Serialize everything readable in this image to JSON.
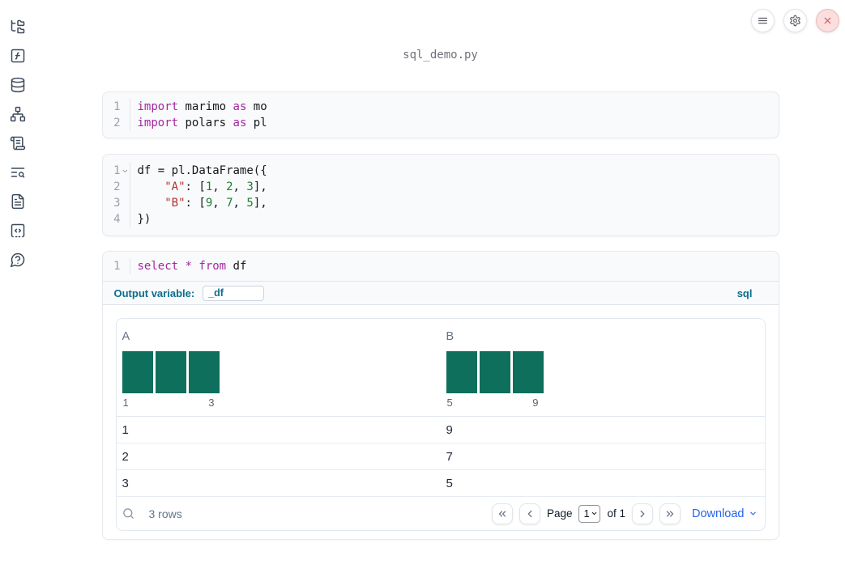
{
  "colors": {
    "keyword": "#a626a4",
    "string": "#b5312c",
    "number": "#1f7d32",
    "code_text": "#18181b",
    "bar": "#0e6f5c",
    "sql_accent": "#0c6d8c",
    "link_blue": "#2563eb"
  },
  "header": {
    "filename": "sql_demo.py"
  },
  "sidebar": {
    "items": [
      {
        "name": "file-explorer",
        "icon": "folder-tree-icon"
      },
      {
        "name": "variables",
        "icon": "function-square-icon"
      },
      {
        "name": "data-sources",
        "icon": "database-icon"
      },
      {
        "name": "dependency-graph",
        "icon": "network-icon"
      },
      {
        "name": "logs",
        "icon": "scroll-text-icon"
      },
      {
        "name": "outline",
        "icon": "text-search-icon"
      },
      {
        "name": "documentation",
        "icon": "file-text-icon"
      },
      {
        "name": "snippets",
        "icon": "code-square-icon"
      },
      {
        "name": "help",
        "icon": "message-question-icon"
      }
    ]
  },
  "topbar": {
    "buttons": [
      {
        "name": "notebook-menu",
        "icon": "menu-icon",
        "style": "default"
      },
      {
        "name": "settings",
        "icon": "gear-icon",
        "style": "default"
      },
      {
        "name": "shutdown",
        "icon": "close-icon",
        "style": "danger"
      }
    ]
  },
  "cells": [
    {
      "type": "python",
      "lines": [
        {
          "n": "1",
          "tokens": [
            [
              "kw",
              "import"
            ],
            [
              "plain",
              " marimo "
            ],
            [
              "kw",
              "as"
            ],
            [
              "plain",
              " mo"
            ]
          ]
        },
        {
          "n": "2",
          "tokens": [
            [
              "kw",
              "import"
            ],
            [
              "plain",
              " polars "
            ],
            [
              "kw",
              "as"
            ],
            [
              "plain",
              " pl"
            ]
          ]
        }
      ]
    },
    {
      "type": "python",
      "lines": [
        {
          "n": "1",
          "fold": true,
          "tokens": [
            [
              "plain",
              "df = pl.DataFrame({"
            ]
          ]
        },
        {
          "n": "2",
          "tokens": [
            [
              "plain",
              "    "
            ],
            [
              "str",
              "\"A\""
            ],
            [
              "plain",
              ": ["
            ],
            [
              "num",
              "1"
            ],
            [
              "plain",
              ", "
            ],
            [
              "num",
              "2"
            ],
            [
              "plain",
              ", "
            ],
            [
              "num",
              "3"
            ],
            [
              "plain",
              "],"
            ]
          ]
        },
        {
          "n": "3",
          "tokens": [
            [
              "plain",
              "    "
            ],
            [
              "str",
              "\"B\""
            ],
            [
              "plain",
              ": ["
            ],
            [
              "num",
              "9"
            ],
            [
              "plain",
              ", "
            ],
            [
              "num",
              "7"
            ],
            [
              "plain",
              ", "
            ],
            [
              "num",
              "5"
            ],
            [
              "plain",
              "],"
            ]
          ]
        },
        {
          "n": "4",
          "tokens": [
            [
              "plain",
              "})"
            ]
          ]
        }
      ]
    },
    {
      "type": "sql",
      "lines": [
        {
          "n": "1",
          "tokens": [
            [
              "kw",
              "select"
            ],
            [
              "plain",
              " "
            ],
            [
              "kw",
              "*"
            ],
            [
              "plain",
              " "
            ],
            [
              "kw",
              "from"
            ],
            [
              "plain",
              " df"
            ]
          ]
        }
      ],
      "output_variable_label": "Output variable:",
      "output_variable_value": "_df",
      "language_badge": "sql"
    }
  ],
  "table": {
    "columns": [
      {
        "header": "A",
        "hist": {
          "bar_count": 3,
          "bar_heights": [
            1,
            1,
            1
          ],
          "left_label": "1",
          "right_label": "3"
        }
      },
      {
        "header": "B",
        "hist": {
          "bar_count": 3,
          "bar_heights": [
            1,
            1,
            1
          ],
          "left_label": "5",
          "right_label": "9"
        }
      }
    ],
    "rows": [
      [
        "1",
        "9"
      ],
      [
        "2",
        "7"
      ],
      [
        "3",
        "5"
      ]
    ],
    "row_count_text": "3 rows",
    "pagination": {
      "page_label": "Page",
      "page_value": "1",
      "of_label": "of 1"
    },
    "download_label": "Download"
  }
}
